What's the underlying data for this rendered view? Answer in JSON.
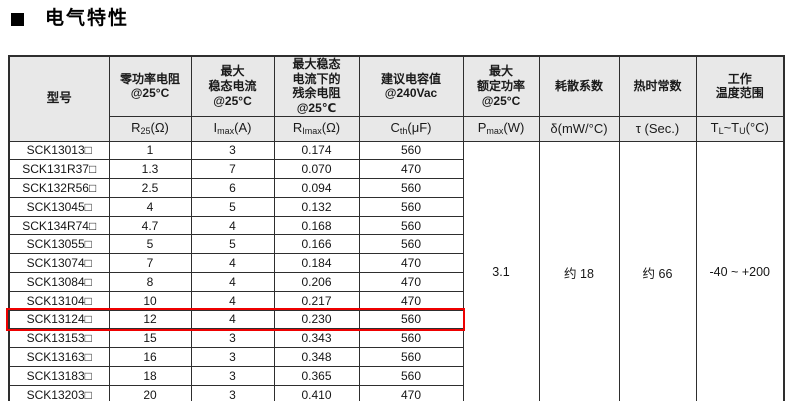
{
  "page": {
    "section_title": "电气特性"
  },
  "colors": {
    "header_bg": "#e8e8e8",
    "border": "#2e2e2e"
  },
  "table": {
    "header": {
      "model_label": "型号",
      "columns": [
        "零功率电阻\n@25°C",
        "最大\n稳态电流\n@25°C",
        "最大稳态\n电流下的\n残余电阻\n@25℃",
        "建议电容值\n@240Vac",
        "最大\n额定功率\n@25°C",
        "耗散系数",
        "热时常数",
        "工作\n温度范围"
      ],
      "units": [
        {
          "segments": [
            {
              "t": "R"
            },
            {
              "t": "25",
              "sub": true
            },
            {
              "t": "(Ω)"
            }
          ]
        },
        {
          "segments": [
            {
              "t": "I"
            },
            {
              "t": "max",
              "sub": true
            },
            {
              "t": "(A)"
            }
          ]
        },
        {
          "segments": [
            {
              "t": "R"
            },
            {
              "t": "Imax",
              "sub": true
            },
            {
              "t": "(Ω)"
            }
          ]
        },
        {
          "segments": [
            {
              "t": "C"
            },
            {
              "t": "th",
              "sub": true
            },
            {
              "t": "(μF)"
            }
          ]
        },
        {
          "segments": [
            {
              "t": "P"
            },
            {
              "t": "max",
              "sub": true
            },
            {
              "t": "(W)"
            }
          ]
        },
        {
          "segments": [
            {
              "t": "δ(mW/°C)"
            }
          ]
        },
        {
          "segments": [
            {
              "t": "τ (Sec.)"
            }
          ]
        },
        {
          "segments": [
            {
              "t": "T"
            },
            {
              "t": "L",
              "sub": true
            },
            {
              "t": "~T"
            },
            {
              "t": "U",
              "sub": true
            },
            {
              "t": "(°C)"
            }
          ]
        }
      ]
    },
    "rows": [
      {
        "model": "SCK13013□",
        "r25": "1",
        "imax": "3",
        "rimax": "0.174",
        "cth": "560"
      },
      {
        "model": "SCK131R37□",
        "r25": "1.3",
        "imax": "7",
        "rimax": "0.070",
        "cth": "470"
      },
      {
        "model": "SCK132R56□",
        "r25": "2.5",
        "imax": "6",
        "rimax": "0.094",
        "cth": "560"
      },
      {
        "model": "SCK13045□",
        "r25": "4",
        "imax": "5",
        "rimax": "0.132",
        "cth": "560"
      },
      {
        "model": "SCK134R74□",
        "r25": "4.7",
        "imax": "4",
        "rimax": "0.168",
        "cth": "560"
      },
      {
        "model": "SCK13055□",
        "r25": "5",
        "imax": "5",
        "rimax": "0.166",
        "cth": "560"
      },
      {
        "model": "SCK13074□",
        "r25": "7",
        "imax": "4",
        "rimax": "0.184",
        "cth": "470"
      },
      {
        "model": "SCK13084□",
        "r25": "8",
        "imax": "4",
        "rimax": "0.206",
        "cth": "470"
      },
      {
        "model": "SCK13104□",
        "r25": "10",
        "imax": "4",
        "rimax": "0.217",
        "cth": "470"
      },
      {
        "model": "SCK13124□",
        "r25": "12",
        "imax": "4",
        "rimax": "0.230",
        "cth": "560"
      },
      {
        "model": "SCK13153□",
        "r25": "15",
        "imax": "3",
        "rimax": "0.343",
        "cth": "560"
      },
      {
        "model": "SCK13163□",
        "r25": "16",
        "imax": "3",
        "rimax": "0.348",
        "cth": "560"
      },
      {
        "model": "SCK13183□",
        "r25": "18",
        "imax": "3",
        "rimax": "0.365",
        "cth": "560"
      },
      {
        "model": "SCK13203□",
        "r25": "20",
        "imax": "3",
        "rimax": "0.410",
        "cth": "470"
      }
    ],
    "merged": [
      {
        "name": "pmax",
        "value": "3.1"
      },
      {
        "name": "dissipation",
        "value": "约 18"
      },
      {
        "name": "time-constant",
        "value": "约 66"
      },
      {
        "name": "temp-range",
        "value": "-40 ~ +200"
      }
    ],
    "highlight": {
      "model": "SCK13124□",
      "span_cells": 5,
      "color": "#ee0000"
    }
  }
}
